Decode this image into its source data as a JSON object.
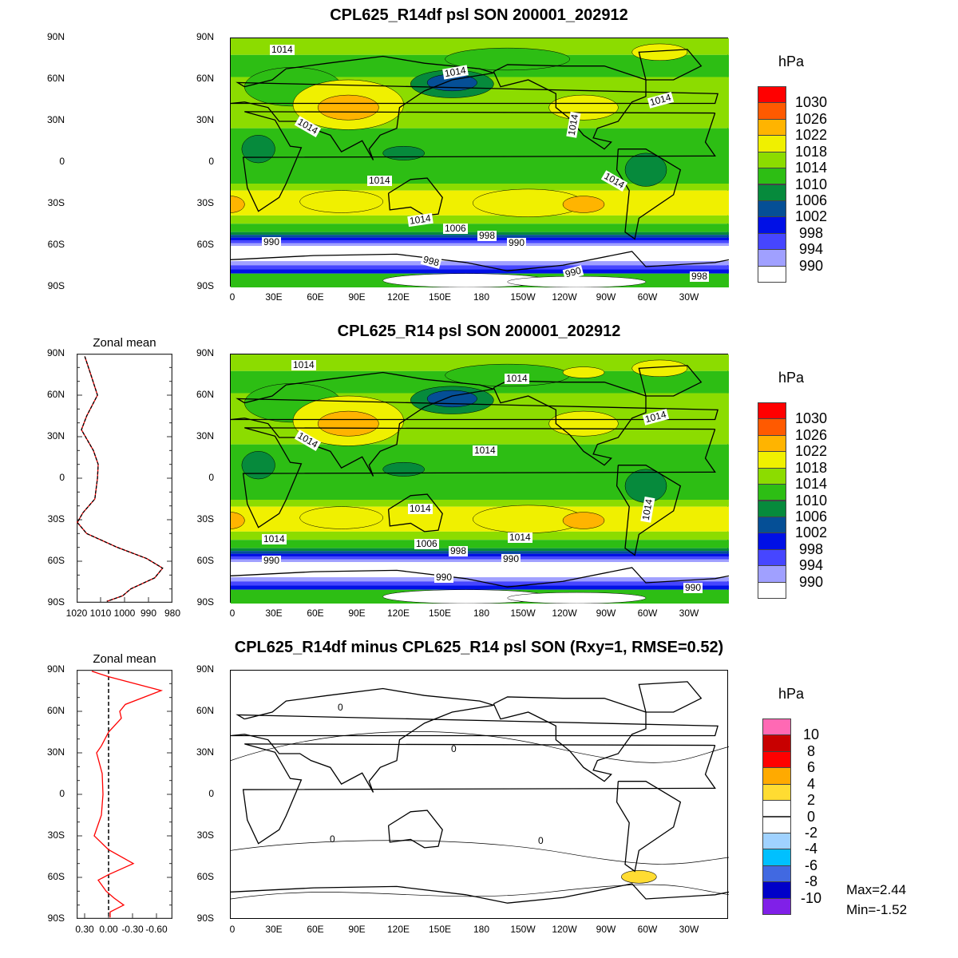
{
  "panels": [
    {
      "title": "CPL625_R14df psl SON 200001_202912",
      "contour_labels": [
        "1014",
        "1014",
        "1014",
        "1014",
        "1014",
        "1014",
        "1014",
        "1014",
        "1006",
        "998",
        "990",
        "990",
        "998",
        "990",
        "998"
      ]
    },
    {
      "title": "CPL625_R14 psl SON 200001_202912",
      "contour_labels": [
        "1014",
        "1014",
        "1014",
        "1014",
        "1014",
        "1014",
        "1014",
        "1014",
        "1014",
        "1006",
        "998",
        "990",
        "990",
        "990",
        "990"
      ]
    },
    {
      "title": "CPL625_R14df minus CPL625_R14 psl SON (Rxy=1, RMSE=0.52)",
      "contour_labels": [
        "0",
        "0",
        "0",
        "0"
      ]
    }
  ],
  "lat_ticks": [
    "90N",
    "60N",
    "30N",
    "0",
    "30S",
    "60S",
    "90S"
  ],
  "lon_ticks": [
    "0",
    "30E",
    "60E",
    "90E",
    "120E",
    "150E",
    "180",
    "150W",
    "120W",
    "90W",
    "60W",
    "30W"
  ],
  "colorbar_mean": {
    "unit": "hPa",
    "labels": [
      "1030",
      "1026",
      "1022",
      "1018",
      "1014",
      "1010",
      "1006",
      "1002",
      "998",
      "994",
      "990"
    ],
    "colors": [
      "#ff0000",
      "#ff5a00",
      "#ffb400",
      "#f0f000",
      "#8cdc00",
      "#2dbe14",
      "#068a3c",
      "#054f96",
      "#0010e6",
      "#4646ff",
      "#a0a0ff",
      "#ffffff"
    ]
  },
  "colorbar_diff": {
    "unit": "hPa",
    "labels": [
      "10",
      "8",
      "6",
      "4",
      "2",
      "0",
      "-2",
      "-4",
      "-6",
      "-8",
      "-10"
    ],
    "colors": [
      "#ff69b4",
      "#c80000",
      "#ff0000",
      "#ffaa00",
      "#ffdc32",
      "#ffffff",
      "#ffffff",
      "#a0d2ff",
      "#00c0ff",
      "#4169e1",
      "#0000c8",
      "#8020e8"
    ]
  },
  "diff_stats": {
    "max": "Max=2.44",
    "min": "Min=-1.52"
  },
  "chart_data": [
    {
      "type": "line",
      "title": "Zonal mean",
      "ylabel": "",
      "xlabel": "",
      "x_ticks": [
        "1020",
        "1010",
        "1000",
        "990",
        "980"
      ],
      "xlim": [
        1020,
        980
      ],
      "ylim": [
        -90,
        90
      ],
      "lat": [
        88,
        75,
        60,
        45,
        35,
        20,
        10,
        0,
        -15,
        -25,
        -32,
        -40,
        -50,
        -58,
        -65,
        -72,
        -80,
        -85,
        -89
      ],
      "series": [
        {
          "color": "#ff0000",
          "values": [
            1016.6,
            1014.1,
            1011.3,
            1015.8,
            1018,
            1013,
            1011,
            1011.3,
            1012.4,
            1017.4,
            1019.7,
            1015.8,
            1003,
            990.8,
            984.1,
            987.4,
            997.4,
            1000.8,
            1007.4
          ]
        },
        {
          "color": "#000000",
          "dashed": true,
          "values": [
            1016.6,
            1014.1,
            1011.3,
            1015.8,
            1018,
            1013,
            1011,
            1011.3,
            1012.4,
            1017.4,
            1019.7,
            1015.8,
            1003,
            990.8,
            984.1,
            987.4,
            997.4,
            1000.8,
            1007.4
          ]
        }
      ]
    },
    {
      "type": "line",
      "title": "Zonal mean",
      "ylabel": "",
      "xlabel": "",
      "x_ticks": [
        "0.30",
        "0.00",
        "-0.30",
        "-0.60"
      ],
      "xlim": [
        0.4,
        -0.8
      ],
      "ylim": [
        -90,
        90
      ],
      "lat": [
        89,
        85,
        75,
        65,
        60,
        55,
        45,
        35,
        30,
        15,
        0,
        -15,
        -30,
        -40,
        -50,
        -58,
        -62,
        -70,
        -75,
        -80,
        -85,
        -89
      ],
      "series": [
        {
          "color": "#ff0000",
          "values": [
            0.21,
            0,
            -0.66,
            -0.21,
            -0.14,
            -0.16,
            0,
            0.09,
            0.15,
            0.08,
            0.07,
            0.09,
            0.18,
            0,
            -0.31,
            0,
            0.13,
            0.03,
            -0.07,
            -0.19,
            -0.02,
            -0.02
          ]
        }
      ],
      "reference_line": 0
    }
  ]
}
